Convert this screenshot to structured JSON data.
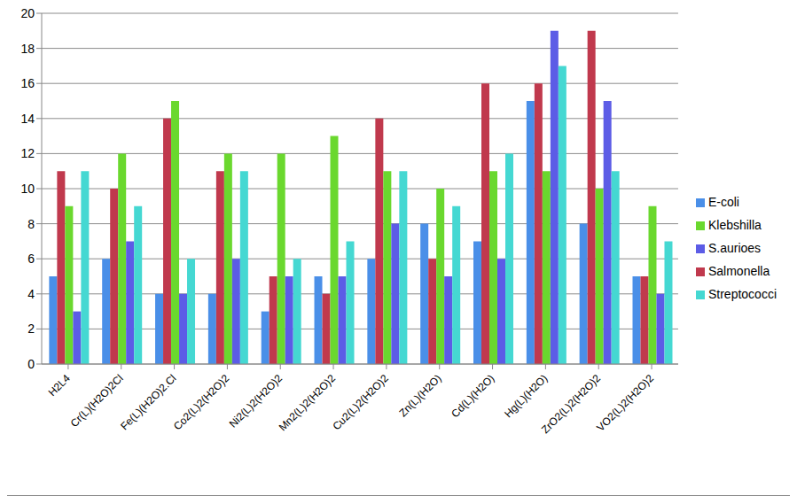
{
  "chart_data": {
    "type": "bar",
    "categories": [
      "H2L4",
      "Cr(L)(H2O)2Cl",
      "Fe(L)(H2O)2.Cl",
      "Co2(L)2(H2O)2",
      "Ni2(L)2(H2O)2",
      "Mn2(L)2(H2O)2",
      "Cu2(L)2(H2O)2",
      "Zn(L)(H2O)",
      "Cd(L)(H2O)",
      "Hg(L)(H2O)",
      "ZrO2(L)2(H2O)2",
      "VO2(L)2(H2O)2"
    ],
    "series": [
      {
        "name": "E-coli",
        "color": "#4a8fe8",
        "values": [
          5,
          6,
          4,
          4,
          3,
          5,
          6,
          8,
          7,
          15,
          8,
          5
        ]
      },
      {
        "name": "Salmonella",
        "color": "#c0394d",
        "values": [
          11,
          10,
          14,
          11,
          5,
          4,
          14,
          6,
          16,
          16,
          19,
          5
        ]
      },
      {
        "name": "Klebshilla",
        "color": "#6ad82e",
        "values": [
          9,
          12,
          15,
          12,
          12,
          13,
          11,
          10,
          11,
          11,
          10,
          9
        ]
      },
      {
        "name": "S.aurioes",
        "color": "#5c5ce6",
        "values": [
          3,
          7,
          4,
          6,
          5,
          5,
          8,
          5,
          6,
          19,
          15,
          4
        ]
      },
      {
        "name": "Streptococci",
        "color": "#45d8d2",
        "values": [
          11,
          9,
          6,
          11,
          6,
          7,
          11,
          9,
          12,
          17,
          11,
          7
        ]
      }
    ],
    "ylim": [
      0,
      20
    ],
    "yticks": [
      0,
      2,
      4,
      6,
      8,
      10,
      12,
      14,
      16,
      18,
      20
    ],
    "grid": true,
    "legend": "right"
  }
}
